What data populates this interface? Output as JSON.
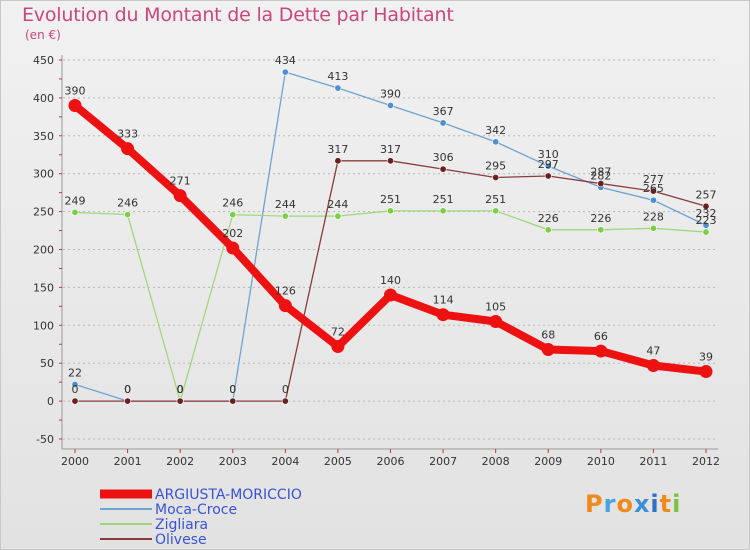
{
  "chart_data": {
    "type": "line",
    "title": "Evolution du Montant de la Dette par Habitant",
    "subtitle": "(en €)",
    "xlabel": "",
    "ylabel": "",
    "x": [
      "2000",
      "2001",
      "2002",
      "2003",
      "2004",
      "2005",
      "2006",
      "2007",
      "2008",
      "2009",
      "2010",
      "2011",
      "2012"
    ],
    "ylim": [
      -50,
      450
    ],
    "yticks": [
      -50,
      0,
      50,
      100,
      150,
      200,
      250,
      300,
      350,
      400,
      450
    ],
    "grid": "horizontal dashed",
    "legend_position": "bottom-left",
    "series": [
      {
        "name": "ARGIUSTA-MORICCIO",
        "color": "#ee1111",
        "emphasis": true,
        "values": [
          390,
          333,
          271,
          202,
          126,
          72,
          140,
          114,
          105,
          68,
          66,
          47,
          39
        ]
      },
      {
        "name": "Moca-Croce",
        "color": "#6fa3d2",
        "marker_color": "#4f8ed0",
        "values": [
          22,
          0,
          0,
          0,
          434,
          413,
          390,
          367,
          342,
          310,
          282,
          265,
          232
        ]
      },
      {
        "name": "Zigliara",
        "color": "#9fd87c",
        "marker_color": "#7ccf45",
        "values": [
          249,
          246,
          0,
          246,
          244,
          244,
          251,
          251,
          251,
          226,
          226,
          228,
          223
        ]
      },
      {
        "name": "Olivese",
        "color": "#8a3b3b",
        "marker_color": "#6b1f1f",
        "values": [
          0,
          0,
          0,
          0,
          0,
          317,
          317,
          306,
          295,
          297,
          287,
          277,
          257
        ]
      }
    ]
  },
  "logo": {
    "text": "Proxiti"
  }
}
